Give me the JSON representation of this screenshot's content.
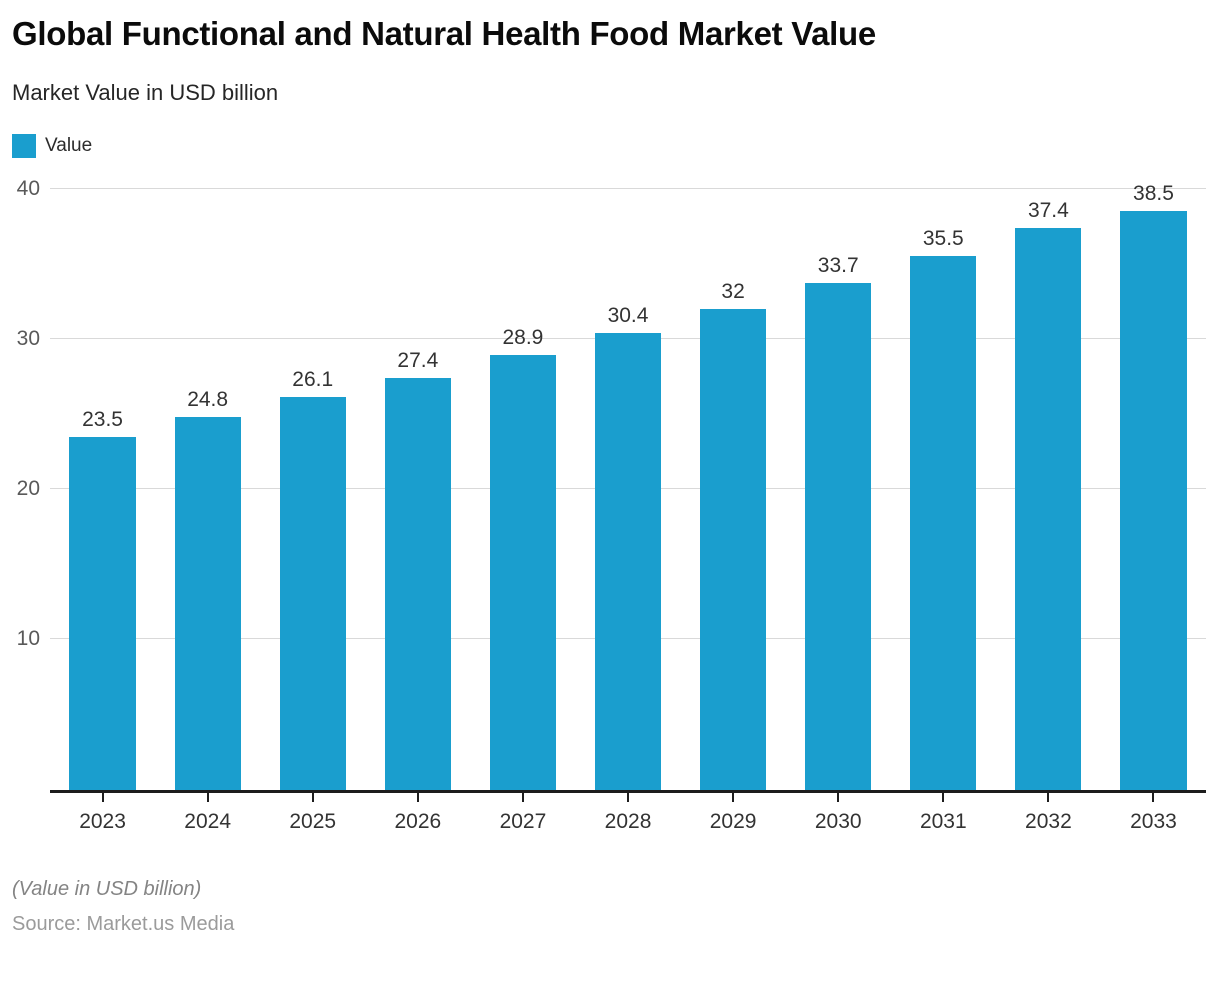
{
  "header": {
    "title": "Global Functional and Natural Health Food Market Value",
    "subtitle": "Market Value in USD billion"
  },
  "legend": {
    "label": "Value",
    "color": "#1a9ece"
  },
  "chart_data": {
    "type": "bar",
    "title": "Global Functional and Natural Health Food Market Value",
    "subtitle": "Market Value in USD billion",
    "categories": [
      "2023",
      "2024",
      "2025",
      "2026",
      "2027",
      "2028",
      "2029",
      "2030",
      "2031",
      "2032",
      "2033"
    ],
    "values": [
      23.5,
      24.8,
      26.1,
      27.4,
      28.9,
      30.4,
      32,
      33.7,
      35.5,
      37.4,
      38.5
    ],
    "value_labels": [
      "23.5",
      "24.8",
      "26.1",
      "27.4",
      "28.9",
      "30.4",
      "32",
      "33.7",
      "35.5",
      "37.4",
      "38.5"
    ],
    "series_name": "Value",
    "xlabel": "",
    "ylabel": "",
    "ylim": [
      0,
      40
    ],
    "yticks": [
      10,
      20,
      30,
      40
    ],
    "grid": true,
    "legend_position": "top-left",
    "bar_color": "#1a9ece",
    "gridline_color": "#d9d9d9"
  },
  "footer": {
    "note": "(Value in USD billion)",
    "source": "Source: Market.us Media"
  }
}
